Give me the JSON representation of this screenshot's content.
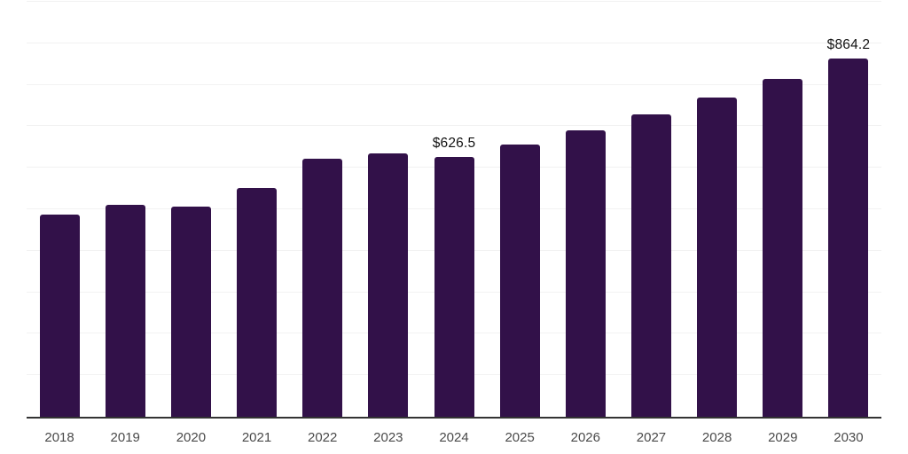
{
  "chart": {
    "background": "#ffffff",
    "bar_color": "#321149",
    "gridline_color": "#f2f2f2",
    "axis_color": "#333333",
    "value_label_color": "#111111",
    "tick_label_color": "#4a4a4a"
  },
  "chart_data": {
    "type": "bar",
    "title": "",
    "xlabel": "",
    "ylabel": "",
    "categories": [
      "2018",
      "2019",
      "2020",
      "2021",
      "2022",
      "2023",
      "2024",
      "2025",
      "2026",
      "2027",
      "2028",
      "2029",
      "2030"
    ],
    "values": [
      488,
      510,
      507,
      551,
      621,
      635,
      626.5,
      656,
      690,
      729,
      770,
      814,
      864.2
    ],
    "bar_labels": [
      "",
      "",
      "",
      "",
      "",
      "",
      "$626.5",
      "",
      "",
      "",
      "",
      "",
      "$864.2"
    ],
    "ylim": [
      0,
      1000
    ],
    "gridline_step": 100,
    "grid": "horizontal",
    "y_axis_labels": "none",
    "legend": "none"
  }
}
